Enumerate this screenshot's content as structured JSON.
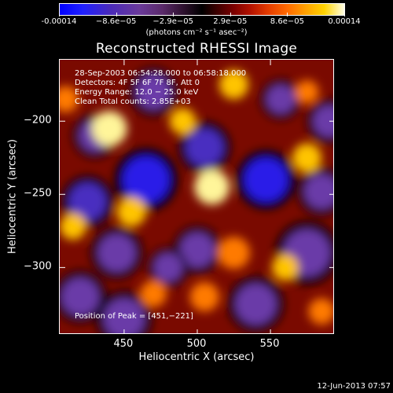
{
  "colorbar": {
    "ticks": [
      "-0.00014",
      "−8.6e−05",
      "−2.9e−05",
      "2.9e−05",
      "8.6e−05",
      "0.00014"
    ],
    "unit": "(photons cm⁻² s⁻¹ asec⁻²)"
  },
  "title": "Reconstructed RHESSI Image",
  "info": {
    "line1": "28-Sep-2003 06:54:28.000 to 06:58:18.000",
    "line2": "Detectors: 4F 5F 6F 7F 8F, Att 0",
    "line3": "Energy Range: 12.0 − 25.0 keV",
    "line4": "Clean    Total counts: 2.85E+03",
    "peak": "Position of Peak = [451,−221]"
  },
  "timestamp": "12-Jun-2013 07:57",
  "chart_data": {
    "type": "heatmap",
    "title": "Reconstructed RHESSI Image",
    "xlabel": "Heliocentric X (arcsec)",
    "ylabel": "Heliocentric Y (arcsec)",
    "xlim": [
      406,
      594
    ],
    "ylim": [
      -346,
      -158
    ],
    "xticks": [
      450,
      500,
      550
    ],
    "xtick_labels": [
      "450",
      "500",
      "550"
    ],
    "yticks": [
      -200,
      -250,
      -300
    ],
    "ytick_labels": [
      "−200",
      "−250",
      "−300"
    ],
    "colorbar_range": [
      -0.00014,
      0.00014
    ],
    "peak_position": [
      451,
      -221
    ],
    "blobs": [
      {
        "x": 465,
        "y": -240,
        "r": 16,
        "level": -1.0
      },
      {
        "x": 547,
        "y": -240,
        "r": 15,
        "level": -0.9
      },
      {
        "x": 505,
        "y": -218,
        "r": 13,
        "level": -0.7
      },
      {
        "x": 425,
        "y": -255,
        "r": 13,
        "level": -0.6
      },
      {
        "x": 430,
        "y": -210,
        "r": 11,
        "level": -0.5
      },
      {
        "x": 575,
        "y": -290,
        "r": 16,
        "level": -0.55
      },
      {
        "x": 445,
        "y": -290,
        "r": 13,
        "level": -0.55
      },
      {
        "x": 500,
        "y": -288,
        "r": 12,
        "level": -0.5
      },
      {
        "x": 540,
        "y": -325,
        "r": 14,
        "level": -0.55
      },
      {
        "x": 585,
        "y": -248,
        "r": 12,
        "level": -0.45
      },
      {
        "x": 450,
        "y": -335,
        "r": 14,
        "level": -0.45
      },
      {
        "x": 420,
        "y": -320,
        "r": 13,
        "level": -0.45
      },
      {
        "x": 590,
        "y": -200,
        "r": 11,
        "level": -0.5
      },
      {
        "x": 470,
        "y": -180,
        "r": 12,
        "level": -0.35
      },
      {
        "x": 557,
        "y": -185,
        "r": 10,
        "level": -0.35
      },
      {
        "x": 480,
        "y": -300,
        "r": 10,
        "level": -0.45
      },
      {
        "x": 440,
        "y": -205,
        "r": 12,
        "level": 1.0
      },
      {
        "x": 510,
        "y": -245,
        "r": 12,
        "level": 0.95
      },
      {
        "x": 455,
        "y": -262,
        "r": 10,
        "level": 0.8
      },
      {
        "x": 415,
        "y": -272,
        "r": 9,
        "level": 0.85
      },
      {
        "x": 490,
        "y": -200,
        "r": 9,
        "level": 0.75
      },
      {
        "x": 575,
        "y": -225,
        "r": 10,
        "level": 0.8
      },
      {
        "x": 525,
        "y": -290,
        "r": 11,
        "level": 0.7
      },
      {
        "x": 410,
        "y": -185,
        "r": 9,
        "level": 0.6
      },
      {
        "x": 470,
        "y": -318,
        "r": 9,
        "level": 0.7
      },
      {
        "x": 525,
        "y": -175,
        "r": 10,
        "level": 0.75
      },
      {
        "x": 560,
        "y": -300,
        "r": 9,
        "level": 0.8
      },
      {
        "x": 505,
        "y": -320,
        "r": 10,
        "level": 0.6
      },
      {
        "x": 575,
        "y": -180,
        "r": 8,
        "level": 0.7
      },
      {
        "x": 585,
        "y": -330,
        "r": 9,
        "level": 0.5
      }
    ]
  }
}
